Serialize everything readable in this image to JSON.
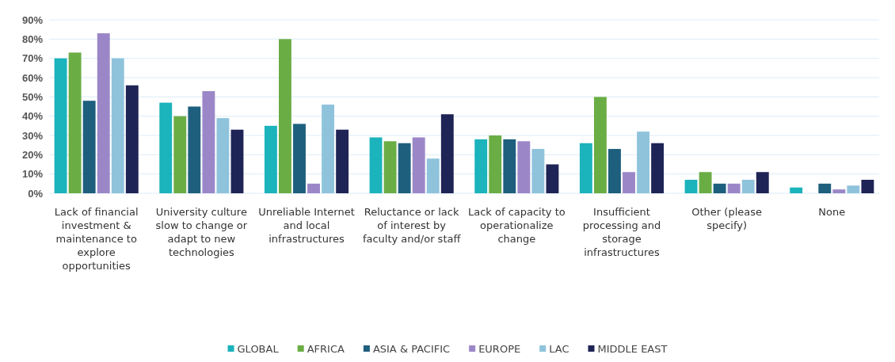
{
  "chart_data": {
    "type": "bar",
    "categories": [
      "Lack of financial investment & maintenance to explore opportunities",
      "University culture slow to change or adapt to new technologies",
      "Unreliable Internet and local infrastructures",
      "Reluctance or lack of interest by faculty and/or staff",
      "Lack of capacity to operationalize change",
      "Insufficient processing and storage infrastructures",
      "Other (please specify)",
      "None"
    ],
    "series": [
      {
        "name": "GLOBAL",
        "color": "#1bb3bc",
        "values": [
          70,
          47,
          35,
          29,
          28,
          26,
          7,
          3
        ]
      },
      {
        "name": "AFRICA",
        "color": "#6aad45",
        "values": [
          73,
          40,
          80,
          27,
          30,
          50,
          11,
          null
        ]
      },
      {
        "name": "ASIA & PACIFIC",
        "color": "#1e5f7e",
        "values": [
          48,
          45,
          36,
          26,
          28,
          23,
          5,
          5
        ]
      },
      {
        "name": "EUROPE",
        "color": "#9b87c8",
        "values": [
          83,
          53,
          5,
          29,
          27,
          11,
          5,
          2
        ]
      },
      {
        "name": "LAC",
        "color": "#8fc3dc",
        "values": [
          70,
          39,
          46,
          18,
          23,
          32,
          7,
          4
        ]
      },
      {
        "name": "MIDDLE EAST",
        "color": "#1f2456",
        "values": [
          56,
          33,
          33,
          41,
          15,
          26,
          11,
          7
        ]
      }
    ],
    "ylim": [
      0,
      90
    ],
    "yticks": [
      {
        "value": 0,
        "label": "0%"
      },
      {
        "value": 10,
        "label": "10%"
      },
      {
        "value": 20,
        "label": "20%"
      },
      {
        "value": 30,
        "label": "30%"
      },
      {
        "value": 40,
        "label": "40%"
      },
      {
        "value": 50,
        "label": "50%"
      },
      {
        "value": 60,
        "label": "60%"
      },
      {
        "value": 70,
        "label": "70%"
      },
      {
        "value": 80,
        "label": "80%"
      },
      {
        "value": 90,
        "label": "90%"
      }
    ],
    "grid": "y",
    "legend": "bottom"
  }
}
